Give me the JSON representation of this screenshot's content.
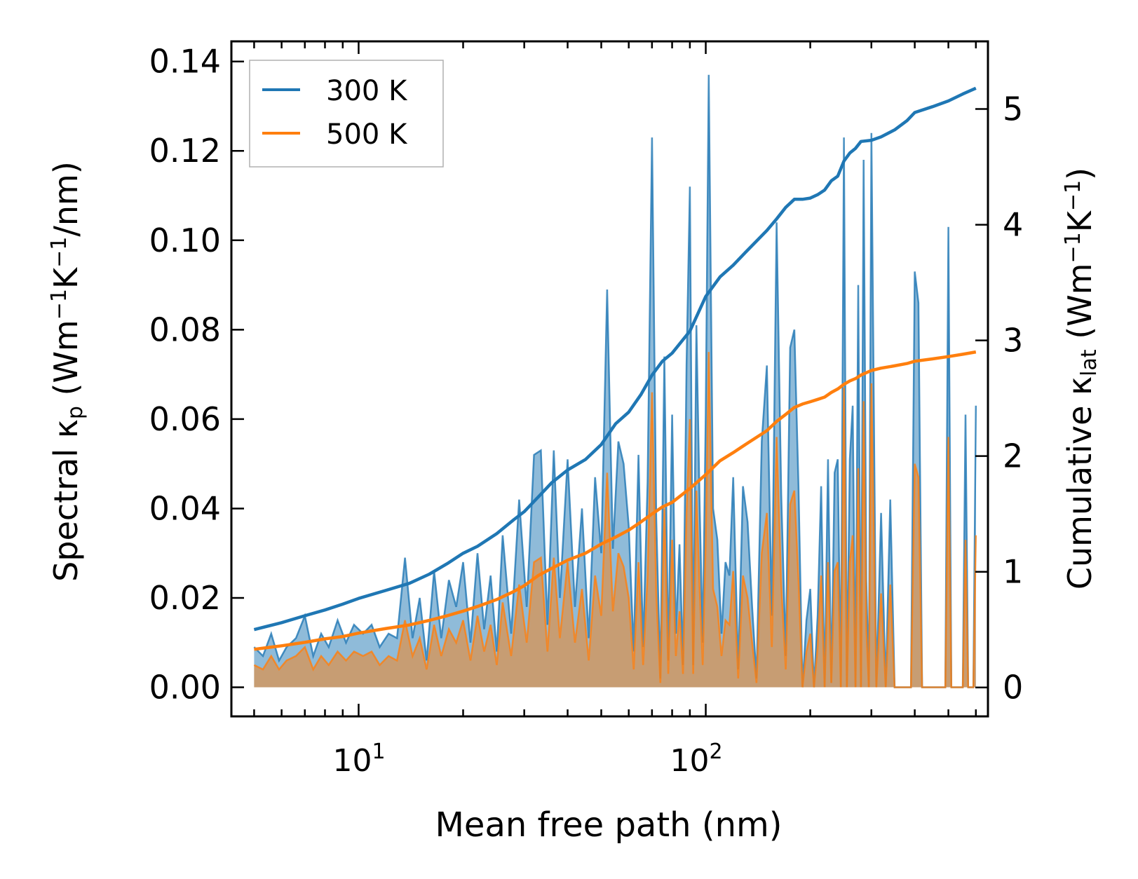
{
  "colors": {
    "series_300": "#1f77b4",
    "series_500": "#ff7f0e",
    "fill_300": "#1f77b4",
    "fill_500": "#ff7f0e",
    "axis": "#000000"
  },
  "labels": {
    "left_prefix": "Spectral κ",
    "left_sub": "p",
    "left_rest": " (Wm",
    "left_sup1": "−1",
    "left_k": "K",
    "left_sup2": "−1",
    "left_tail": "/nm)",
    "right_prefix": "Cumulative κ",
    "right_sub": "lat",
    "right_rest": " (Wm",
    "right_sup1": "−1",
    "right_k": "K",
    "right_sup2": "−1",
    "right_tail": ")",
    "xlabel": "Mean free path (nm)",
    "x_tick_base": "10",
    "x_tick_exp1": "1",
    "x_tick_exp2": "2"
  },
  "chart_data": {
    "type": "line",
    "title": "",
    "xlabel": "Mean free path (nm)",
    "ylabel": "Spectral κp (Wm−1K−1/nm)",
    "y2label": "Cumulative κlat (Wm−1K−1)",
    "xscale": "log",
    "xlim": [
      4.3,
      650
    ],
    "ylim": [
      -0.0065,
      0.1445
    ],
    "y2lim": [
      -0.25,
      5.585
    ],
    "yticks": [
      "0.00",
      "0.02",
      "0.04",
      "0.06",
      "0.08",
      "0.10",
      "0.12",
      "0.14"
    ],
    "ytick_values": [
      0,
      0.02,
      0.04,
      0.06,
      0.08,
      0.1,
      0.12,
      0.14
    ],
    "y2ticks": [
      "0",
      "1",
      "2",
      "3",
      "4",
      "5"
    ],
    "y2tick_values": [
      0,
      1,
      2,
      3,
      4,
      5
    ],
    "legend": {
      "location": "top-left",
      "entries": [
        "300 K",
        "500 K"
      ]
    },
    "spectral_x": [
      5,
      5.3,
      5.6,
      5.9,
      6.2,
      6.6,
      7,
      7.4,
      7.8,
      8.2,
      8.7,
      9.2,
      9.7,
      10.3,
      10.9,
      11.5,
      12.2,
      12.9,
      13.6,
      14.3,
      15,
      15.7,
      16.5,
      17.3,
      18.2,
      19.1,
      20,
      21,
      22,
      23,
      24,
      25,
      26,
      27.5,
      29,
      30.5,
      32,
      33.5,
      35,
      36.5,
      38,
      40,
      42,
      44,
      46,
      48,
      50,
      52,
      54,
      56,
      58,
      60,
      62,
      64,
      66,
      68,
      70,
      72,
      74,
      76,
      78,
      80,
      82,
      84,
      86,
      88,
      90,
      92,
      94,
      96,
      98,
      100,
      102,
      105,
      108,
      111,
      114,
      117,
      120,
      124,
      128,
      132,
      136,
      140,
      145,
      150,
      155,
      160,
      165,
      170,
      175,
      180,
      185,
      190,
      195,
      200,
      205,
      210,
      215,
      220,
      225,
      230,
      235,
      240,
      245,
      250,
      255,
      260,
      265,
      270,
      275,
      280,
      285,
      290,
      295,
      300,
      310,
      320,
      330,
      340,
      350,
      360,
      370,
      380,
      390,
      400,
      410,
      420,
      430,
      440,
      450,
      460,
      470,
      480,
      490,
      500,
      510,
      520,
      530,
      540,
      550,
      560,
      570,
      580,
      590,
      600
    ],
    "series": [
      {
        "name": "300 K",
        "role": "spectral",
        "axis": "left",
        "values": [
          0.009,
          0.007,
          0.012,
          0.006,
          0.009,
          0.011,
          0.016,
          0.007,
          0.012,
          0.009,
          0.015,
          0.01,
          0.014,
          0.012,
          0.014,
          0.009,
          0.012,
          0.011,
          0.029,
          0.011,
          0.02,
          0.006,
          0.026,
          0.011,
          0.024,
          0.018,
          0.028,
          0.01,
          0.03,
          0.013,
          0.025,
          0.008,
          0.034,
          0.012,
          0.042,
          0.018,
          0.052,
          0.053,
          0.014,
          0.053,
          0.02,
          0.051,
          0.018,
          0.04,
          0.011,
          0.047,
          0.03,
          0.089,
          0.031,
          0.055,
          0.05,
          0.036,
          0.008,
          0.052,
          0.009,
          0.046,
          0.123,
          0.038,
          0.002,
          0.074,
          0.006,
          0.061,
          0.012,
          0.032,
          0.005,
          0.072,
          0.112,
          0.005,
          0.081,
          0.041,
          0.01,
          0.061,
          0.137,
          0.04,
          0.033,
          0.012,
          0.028,
          0.025,
          0.047,
          0.004,
          0.045,
          0.037,
          0.018,
          0.002,
          0.055,
          0.072,
          0.016,
          0.104,
          0.043,
          0.007,
          0.076,
          0.08,
          0.045,
          0.0,
          0.015,
          0.022,
          0.0,
          0.016,
          0.045,
          0.0,
          0.051,
          0.001,
          0.048,
          0.051,
          0.0,
          0.123,
          0.0,
          0.051,
          0.063,
          0.0,
          0.09,
          0.0,
          0.118,
          0.024,
          0.0,
          0.124,
          0.0,
          0.039,
          0.0,
          0.042,
          0.0,
          0.0,
          0.0,
          0.0,
          0.0,
          0.093,
          0.086,
          0.0,
          0.0,
          0.0,
          0.0,
          0.0,
          0.0,
          0.0,
          0.0,
          0.103,
          0.0,
          0.0,
          0.0,
          0.0,
          0.0,
          0.061,
          0.0,
          0.0,
          0.0,
          0.063
        ]
      },
      {
        "name": "500 K",
        "role": "spectral",
        "axis": "left",
        "values": [
          0.005,
          0.004,
          0.007,
          0.004,
          0.006,
          0.007,
          0.009,
          0.004,
          0.007,
          0.005,
          0.008,
          0.006,
          0.008,
          0.007,
          0.008,
          0.005,
          0.007,
          0.006,
          0.015,
          0.007,
          0.011,
          0.004,
          0.014,
          0.007,
          0.013,
          0.01,
          0.015,
          0.006,
          0.016,
          0.008,
          0.014,
          0.005,
          0.019,
          0.007,
          0.023,
          0.01,
          0.028,
          0.029,
          0.008,
          0.029,
          0.011,
          0.028,
          0.01,
          0.022,
          0.006,
          0.025,
          0.016,
          0.048,
          0.017,
          0.03,
          0.027,
          0.02,
          0.004,
          0.028,
          0.005,
          0.025,
          0.066,
          0.021,
          0.001,
          0.04,
          0.003,
          0.033,
          0.007,
          0.017,
          0.003,
          0.039,
          0.06,
          0.003,
          0.044,
          0.022,
          0.005,
          0.033,
          0.075,
          0.022,
          0.018,
          0.007,
          0.015,
          0.014,
          0.026,
          0.002,
          0.025,
          0.02,
          0.01,
          0.001,
          0.03,
          0.039,
          0.009,
          0.056,
          0.023,
          0.004,
          0.041,
          0.044,
          0.024,
          0.0,
          0.008,
          0.012,
          0.0,
          0.009,
          0.025,
          0.0,
          0.028,
          0.001,
          0.026,
          0.028,
          0.0,
          0.067,
          0.0,
          0.028,
          0.034,
          0.0,
          0.049,
          0.0,
          0.064,
          0.013,
          0.0,
          0.068,
          0.0,
          0.021,
          0.0,
          0.023,
          0.0,
          0.0,
          0.0,
          0.0,
          0.0,
          0.05,
          0.047,
          0.0,
          0.0,
          0.0,
          0.0,
          0.0,
          0.0,
          0.0,
          0.0,
          0.056,
          0.0,
          0.0,
          0.0,
          0.0,
          0.0,
          0.033,
          0.0,
          0.0,
          0.0,
          0.034
        ]
      },
      {
        "name": "300 K cumulative",
        "role": "cumulative",
        "axis": "right",
        "x": [
          5,
          6,
          7,
          8,
          9,
          10,
          12,
          14,
          16,
          18,
          20,
          22,
          25,
          28,
          30,
          33,
          36,
          40,
          45,
          50,
          55,
          60,
          65,
          70,
          75,
          80,
          90,
          100,
          110,
          120,
          130,
          150,
          160,
          170,
          180,
          190,
          200,
          210,
          220,
          230,
          240,
          250,
          260,
          270,
          280,
          300,
          320,
          350,
          380,
          400,
          450,
          500,
          550,
          600
        ],
        "values": [
          0.5,
          0.56,
          0.62,
          0.67,
          0.72,
          0.77,
          0.84,
          0.9,
          0.98,
          1.07,
          1.16,
          1.22,
          1.33,
          1.45,
          1.52,
          1.65,
          1.77,
          1.88,
          1.97,
          2.1,
          2.28,
          2.38,
          2.53,
          2.7,
          2.82,
          2.89,
          3.08,
          3.38,
          3.55,
          3.65,
          3.76,
          3.95,
          4.05,
          4.15,
          4.22,
          4.22,
          4.23,
          4.26,
          4.3,
          4.38,
          4.42,
          4.55,
          4.62,
          4.66,
          4.72,
          4.73,
          4.76,
          4.82,
          4.9,
          4.97,
          5.02,
          5.07,
          5.13,
          5.18
        ]
      },
      {
        "name": "500 K cumulative",
        "role": "cumulative",
        "axis": "right",
        "x": [
          5,
          6,
          7,
          8,
          9,
          10,
          12,
          14,
          16,
          18,
          20,
          22,
          25,
          28,
          30,
          33,
          36,
          40,
          45,
          50,
          55,
          60,
          65,
          70,
          75,
          80,
          90,
          100,
          110,
          120,
          130,
          150,
          160,
          170,
          180,
          190,
          200,
          210,
          220,
          230,
          240,
          250,
          260,
          270,
          280,
          300,
          320,
          350,
          380,
          400,
          450,
          500,
          550,
          600
        ],
        "values": [
          0.33,
          0.36,
          0.39,
          0.42,
          0.44,
          0.47,
          0.51,
          0.54,
          0.58,
          0.62,
          0.66,
          0.7,
          0.76,
          0.83,
          0.88,
          0.97,
          1.03,
          1.1,
          1.16,
          1.24,
          1.3,
          1.36,
          1.43,
          1.5,
          1.56,
          1.6,
          1.72,
          1.84,
          1.96,
          2.03,
          2.1,
          2.22,
          2.3,
          2.36,
          2.42,
          2.45,
          2.47,
          2.49,
          2.51,
          2.55,
          2.58,
          2.62,
          2.65,
          2.67,
          2.7,
          2.74,
          2.76,
          2.78,
          2.8,
          2.82,
          2.84,
          2.86,
          2.88,
          2.9
        ]
      }
    ]
  }
}
